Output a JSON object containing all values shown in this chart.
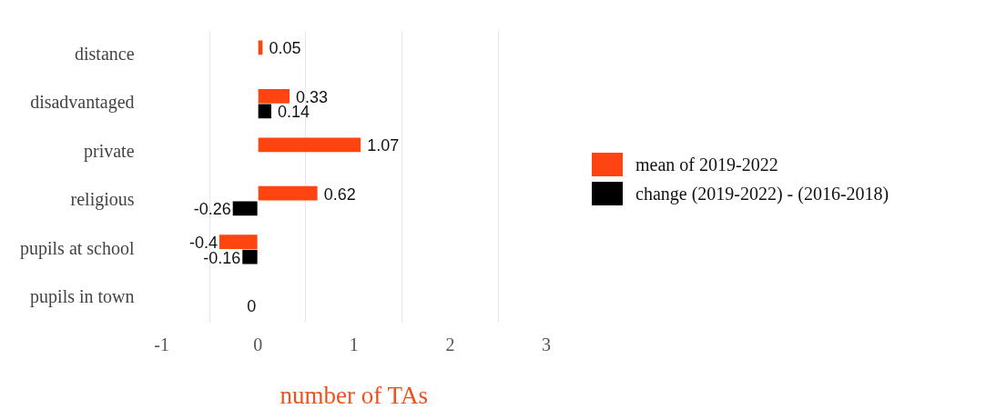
{
  "chart_data": {
    "type": "bar",
    "orientation": "horizontal",
    "xlabel": "number of TAs",
    "categories": [
      "distance",
      "disadvantaged",
      "private",
      "religious",
      "pupils at school",
      "pupils in town"
    ],
    "series": [
      {
        "name": "mean of 2019-2022",
        "color": "#fe4410",
        "values": [
          0.05,
          0.33,
          1.07,
          0.62,
          -0.4,
          null
        ]
      },
      {
        "name": "change (2019-2022) - (2016-2018)",
        "color": "#000000",
        "values": [
          null,
          0.14,
          null,
          -0.26,
          -0.16,
          0
        ]
      }
    ],
    "xlim": [
      -1,
      3
    ],
    "xticks": [
      -1,
      {
        "value": -0.5,
        "label": null
      },
      0,
      {
        "value": 0.5,
        "label": null
      },
      1,
      {
        "value": 1.5,
        "label": null
      },
      2,
      {
        "value": 2.5,
        "label": null
      },
      3
    ],
    "grid": "x",
    "data_labels": true,
    "legend": "right"
  }
}
